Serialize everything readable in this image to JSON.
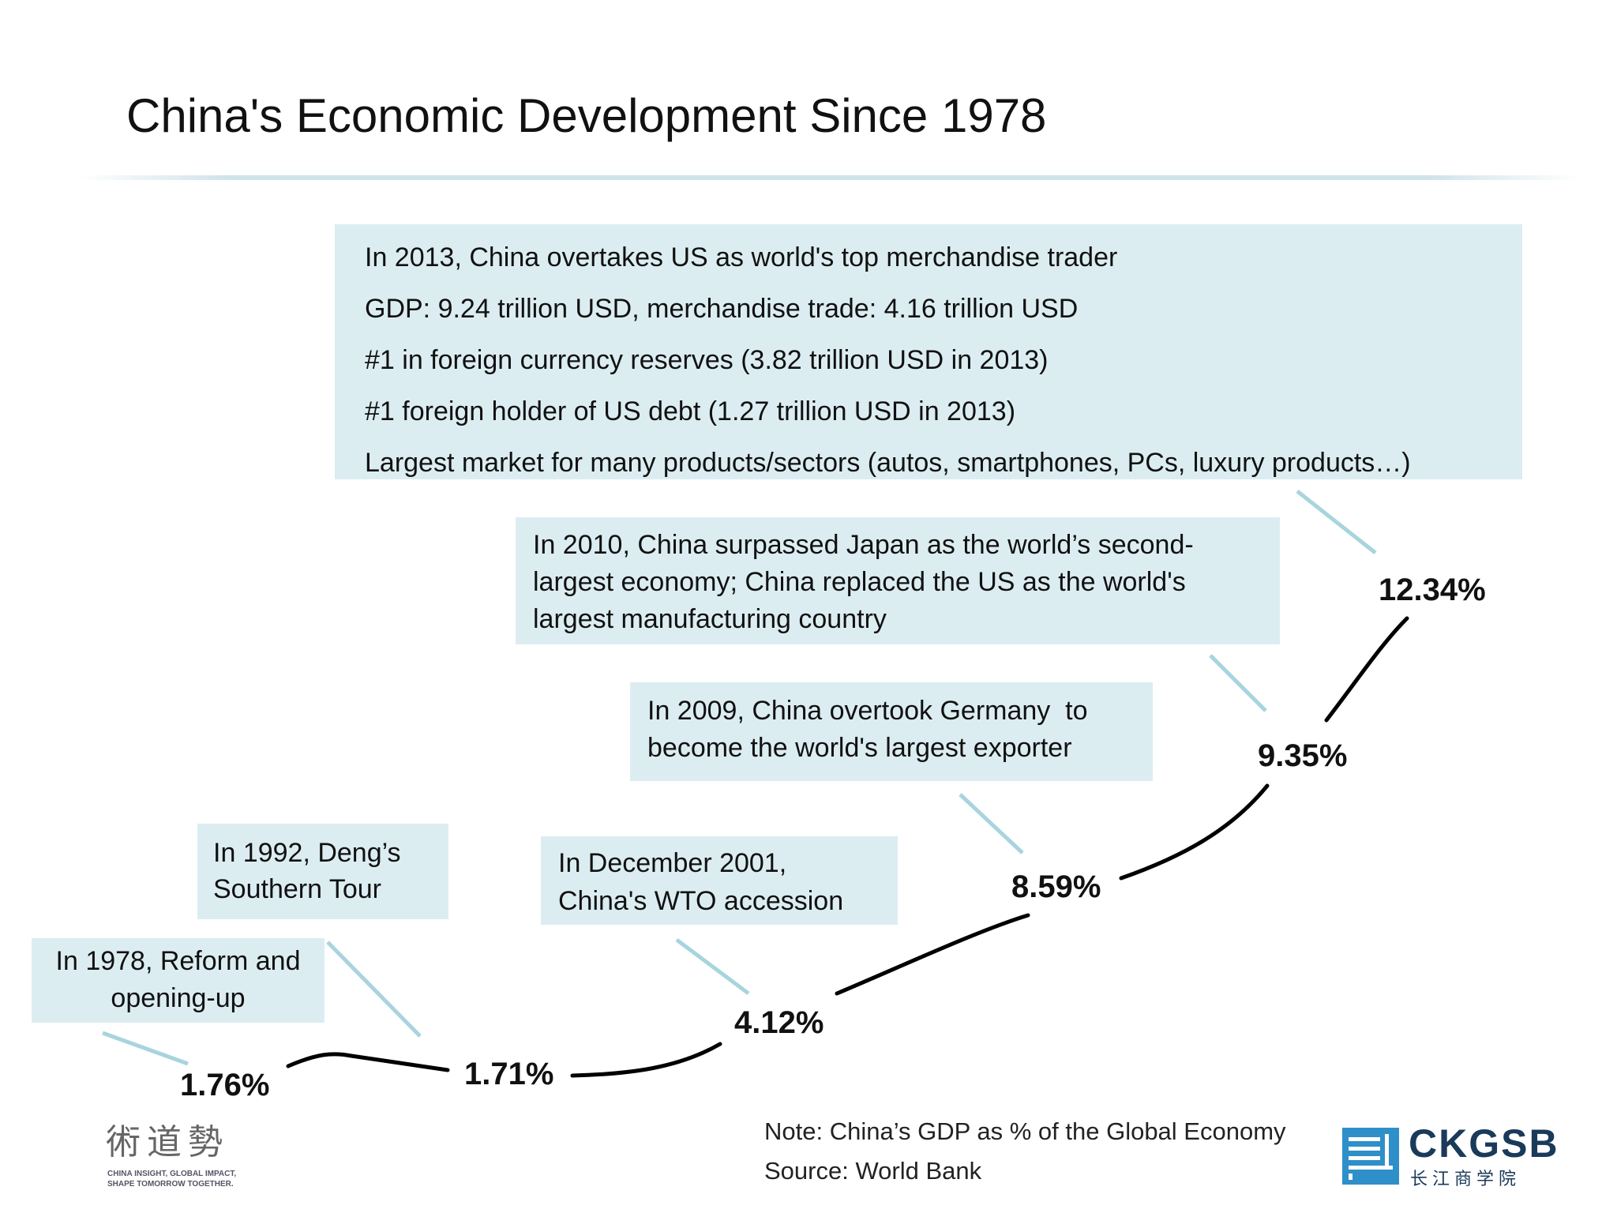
{
  "title": "China's Economic Development Since 1978",
  "callouts": {
    "c2013": [
      "In 2013, China overtakes US as world's top merchandise trader",
      "GDP: 9.24 trillion USD, merchandise trade: 4.16 trillion USD",
      "#1 in foreign currency reserves (3.82 trillion USD in 2013)",
      "#1 foreign holder of US debt (1.27 trillion USD in 2013)",
      "Largest market for many products/sectors (autos, smartphones, PCs, luxury products…)"
    ],
    "c2010": [
      "In 2010, China surpassed Japan as the world’s second-",
      "largest economy; China replaced the US as the world's",
      "largest manufacturing country"
    ],
    "c2009": [
      "In 2009, China overtook Germany  to",
      "become the world's largest exporter"
    ],
    "c2001": [
      "In December 2001,",
      "China's WTO accession"
    ],
    "c1992": [
      "In 1992, Deng’s",
      "Southern Tour"
    ],
    "c1978": [
      "In 1978, Reform and",
      "opening-up"
    ]
  },
  "chart_data": {
    "type": "line",
    "title": "",
    "series": [
      {
        "values": [
          1.76,
          1.71,
          4.12,
          8.59,
          9.35,
          12.34
        ]
      }
    ],
    "data_labels": [
      "1.76%",
      "1.71%",
      "4.12%",
      "8.59%",
      "9.35%",
      "12.34%"
    ],
    "milestones": [
      "1978",
      "1992",
      "2001",
      "2009",
      "2010",
      "2013"
    ],
    "line_color": "#000000",
    "leader_color": "#a8d4de"
  },
  "note": "Note: China’s GDP as % of the Global Economy",
  "source": "Source: World Bank",
  "logos": {
    "left_chars": "術道勢",
    "left_tag_1": "CHINA INSIGHT, GLOBAL IMPACT,",
    "left_tag_2": "SHAPE TOMORROW TOGETHER.",
    "right_brand": "CKGSB",
    "right_cn": "长江商学院"
  }
}
